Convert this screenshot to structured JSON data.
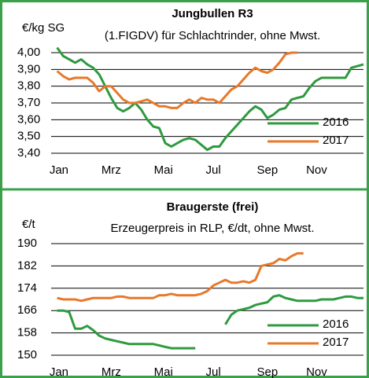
{
  "chart_data": [
    {
      "type": "line",
      "title": "Jungbullen R3",
      "subtitle": "(1.FIGDV) für Schlachtrinder, ohne Mwst.",
      "y_label": "€/kg SG",
      "x": [
        1,
        2,
        3,
        4,
        5,
        6,
        7,
        8,
        9,
        10,
        11,
        12,
        13,
        14,
        15,
        16,
        17,
        18,
        19,
        20,
        21,
        22,
        23,
        24,
        25,
        26,
        27,
        28,
        29,
        30,
        31,
        32,
        33,
        34,
        35,
        36,
        37,
        38,
        39,
        40,
        41,
        42,
        43,
        44,
        45,
        46,
        47,
        48,
        49,
        50,
        51,
        52
      ],
      "xlim": [
        0,
        52
      ],
      "xticks": [
        {
          "value": 1.3,
          "label": "Jan"
        },
        {
          "value": 10,
          "label": "Mrz"
        },
        {
          "value": 18.7,
          "label": "Mai"
        },
        {
          "value": 27,
          "label": "Jul"
        },
        {
          "value": 36,
          "label": "Sep"
        },
        {
          "value": 44.2,
          "label": "Nov"
        }
      ],
      "ylim": [
        3.4,
        4.0
      ],
      "yticks": [
        {
          "value": 3.4,
          "label": "3,40"
        },
        {
          "value": 3.5,
          "label": "3,50"
        },
        {
          "value": 3.6,
          "label": "3,60"
        },
        {
          "value": 3.7,
          "label": "3,70"
        },
        {
          "value": 3.8,
          "label": "3,80"
        },
        {
          "value": 3.9,
          "label": "3,90"
        },
        {
          "value": 4.0,
          "label": "4,00"
        }
      ],
      "grid": true,
      "legend": "lower right",
      "series": [
        {
          "name": "2016",
          "color": "#2e9a3e",
          "values": [
            4.03,
            3.98,
            3.96,
            3.94,
            3.96,
            3.93,
            3.91,
            3.87,
            3.8,
            3.73,
            3.67,
            3.65,
            3.67,
            3.7,
            3.66,
            3.6,
            3.56,
            3.55,
            3.46,
            3.44,
            3.46,
            3.48,
            3.49,
            3.48,
            3.45,
            3.42,
            3.44,
            3.44,
            3.49,
            3.53,
            3.57,
            3.61,
            3.65,
            3.68,
            3.66,
            3.61,
            3.63,
            3.66,
            3.67,
            3.72,
            3.73,
            3.74,
            3.79,
            3.83,
            3.85,
            3.85,
            3.85,
            3.85,
            3.85,
            3.91,
            3.92,
            3.93
          ]
        },
        {
          "name": "2017",
          "color": "#e8782a",
          "values": [
            3.89,
            3.86,
            3.84,
            3.85,
            3.85,
            3.85,
            3.82,
            3.77,
            3.8,
            3.8,
            3.76,
            3.72,
            3.7,
            3.7,
            3.71,
            3.72,
            3.7,
            3.68,
            3.68,
            3.67,
            3.67,
            3.7,
            3.72,
            3.7,
            3.73,
            3.72,
            3.72,
            3.7,
            3.74,
            3.78,
            3.8,
            3.84,
            3.88,
            3.91,
            3.89,
            3.88,
            3.9,
            3.94,
            3.99,
            4.0,
            4.0,
            null,
            null,
            null,
            null,
            null,
            null,
            null,
            null,
            null,
            null,
            null
          ]
        }
      ]
    },
    {
      "type": "line",
      "title": "Braugerste (frei)",
      "subtitle": "Erzeugerpreis in RLP, €/dt, ohne Mwst.",
      "y_label": "€/t",
      "x": [
        1,
        2,
        3,
        4,
        5,
        6,
        7,
        8,
        9,
        10,
        11,
        12,
        13,
        14,
        15,
        16,
        17,
        18,
        19,
        20,
        21,
        22,
        23,
        24,
        25,
        26,
        27,
        28,
        29,
        30,
        31,
        32,
        33,
        34,
        35,
        36,
        37,
        38,
        39,
        40,
        41,
        42,
        43,
        44,
        45,
        46,
        47,
        48,
        49,
        50,
        51,
        52
      ],
      "xlim": [
        0,
        52
      ],
      "xticks": [
        {
          "value": 1.3,
          "label": "Jan"
        },
        {
          "value": 10,
          "label": "Mrz"
        },
        {
          "value": 18.7,
          "label": "Mai"
        },
        {
          "value": 27,
          "label": "Jul"
        },
        {
          "value": 36,
          "label": "Sep"
        },
        {
          "value": 44.2,
          "label": "Nov"
        }
      ],
      "ylim": [
        150,
        190
      ],
      "yticks": [
        150,
        158,
        166,
        174,
        182,
        190
      ],
      "grid": true,
      "legend": "lower right",
      "series": [
        {
          "name": "2016",
          "color": "#2e9a3e",
          "values": [
            166,
            166,
            165.5,
            159.5,
            159.5,
            160.5,
            159,
            157,
            156,
            155.5,
            155,
            154.5,
            154,
            154,
            154,
            154,
            154,
            153.5,
            153,
            152.5,
            152.5,
            152.5,
            152.5,
            152.5,
            null,
            null,
            null,
            null,
            161,
            164.5,
            166,
            166.5,
            167,
            168,
            168.5,
            169,
            171,
            171.5,
            170.5,
            170,
            169.5,
            169.5,
            169.5,
            169.5,
            170,
            170,
            170,
            170.5,
            171,
            171,
            170.5,
            170.5
          ]
        },
        {
          "name": "2017",
          "color": "#e8782a",
          "values": [
            170.5,
            170,
            170,
            170,
            169.5,
            170,
            170.5,
            170.5,
            170.5,
            170.5,
            171,
            171,
            170.5,
            170.5,
            170.5,
            170.5,
            170.5,
            171.5,
            171.5,
            172,
            171.5,
            171.5,
            171.5,
            171.5,
            172,
            173,
            175,
            176,
            177,
            176,
            176,
            176.5,
            176,
            177,
            182,
            182.5,
            183,
            184.5,
            184,
            185.5,
            186.5,
            186.5,
            null,
            null,
            null,
            null,
            null,
            null,
            null,
            null,
            null,
            null
          ]
        }
      ]
    }
  ]
}
